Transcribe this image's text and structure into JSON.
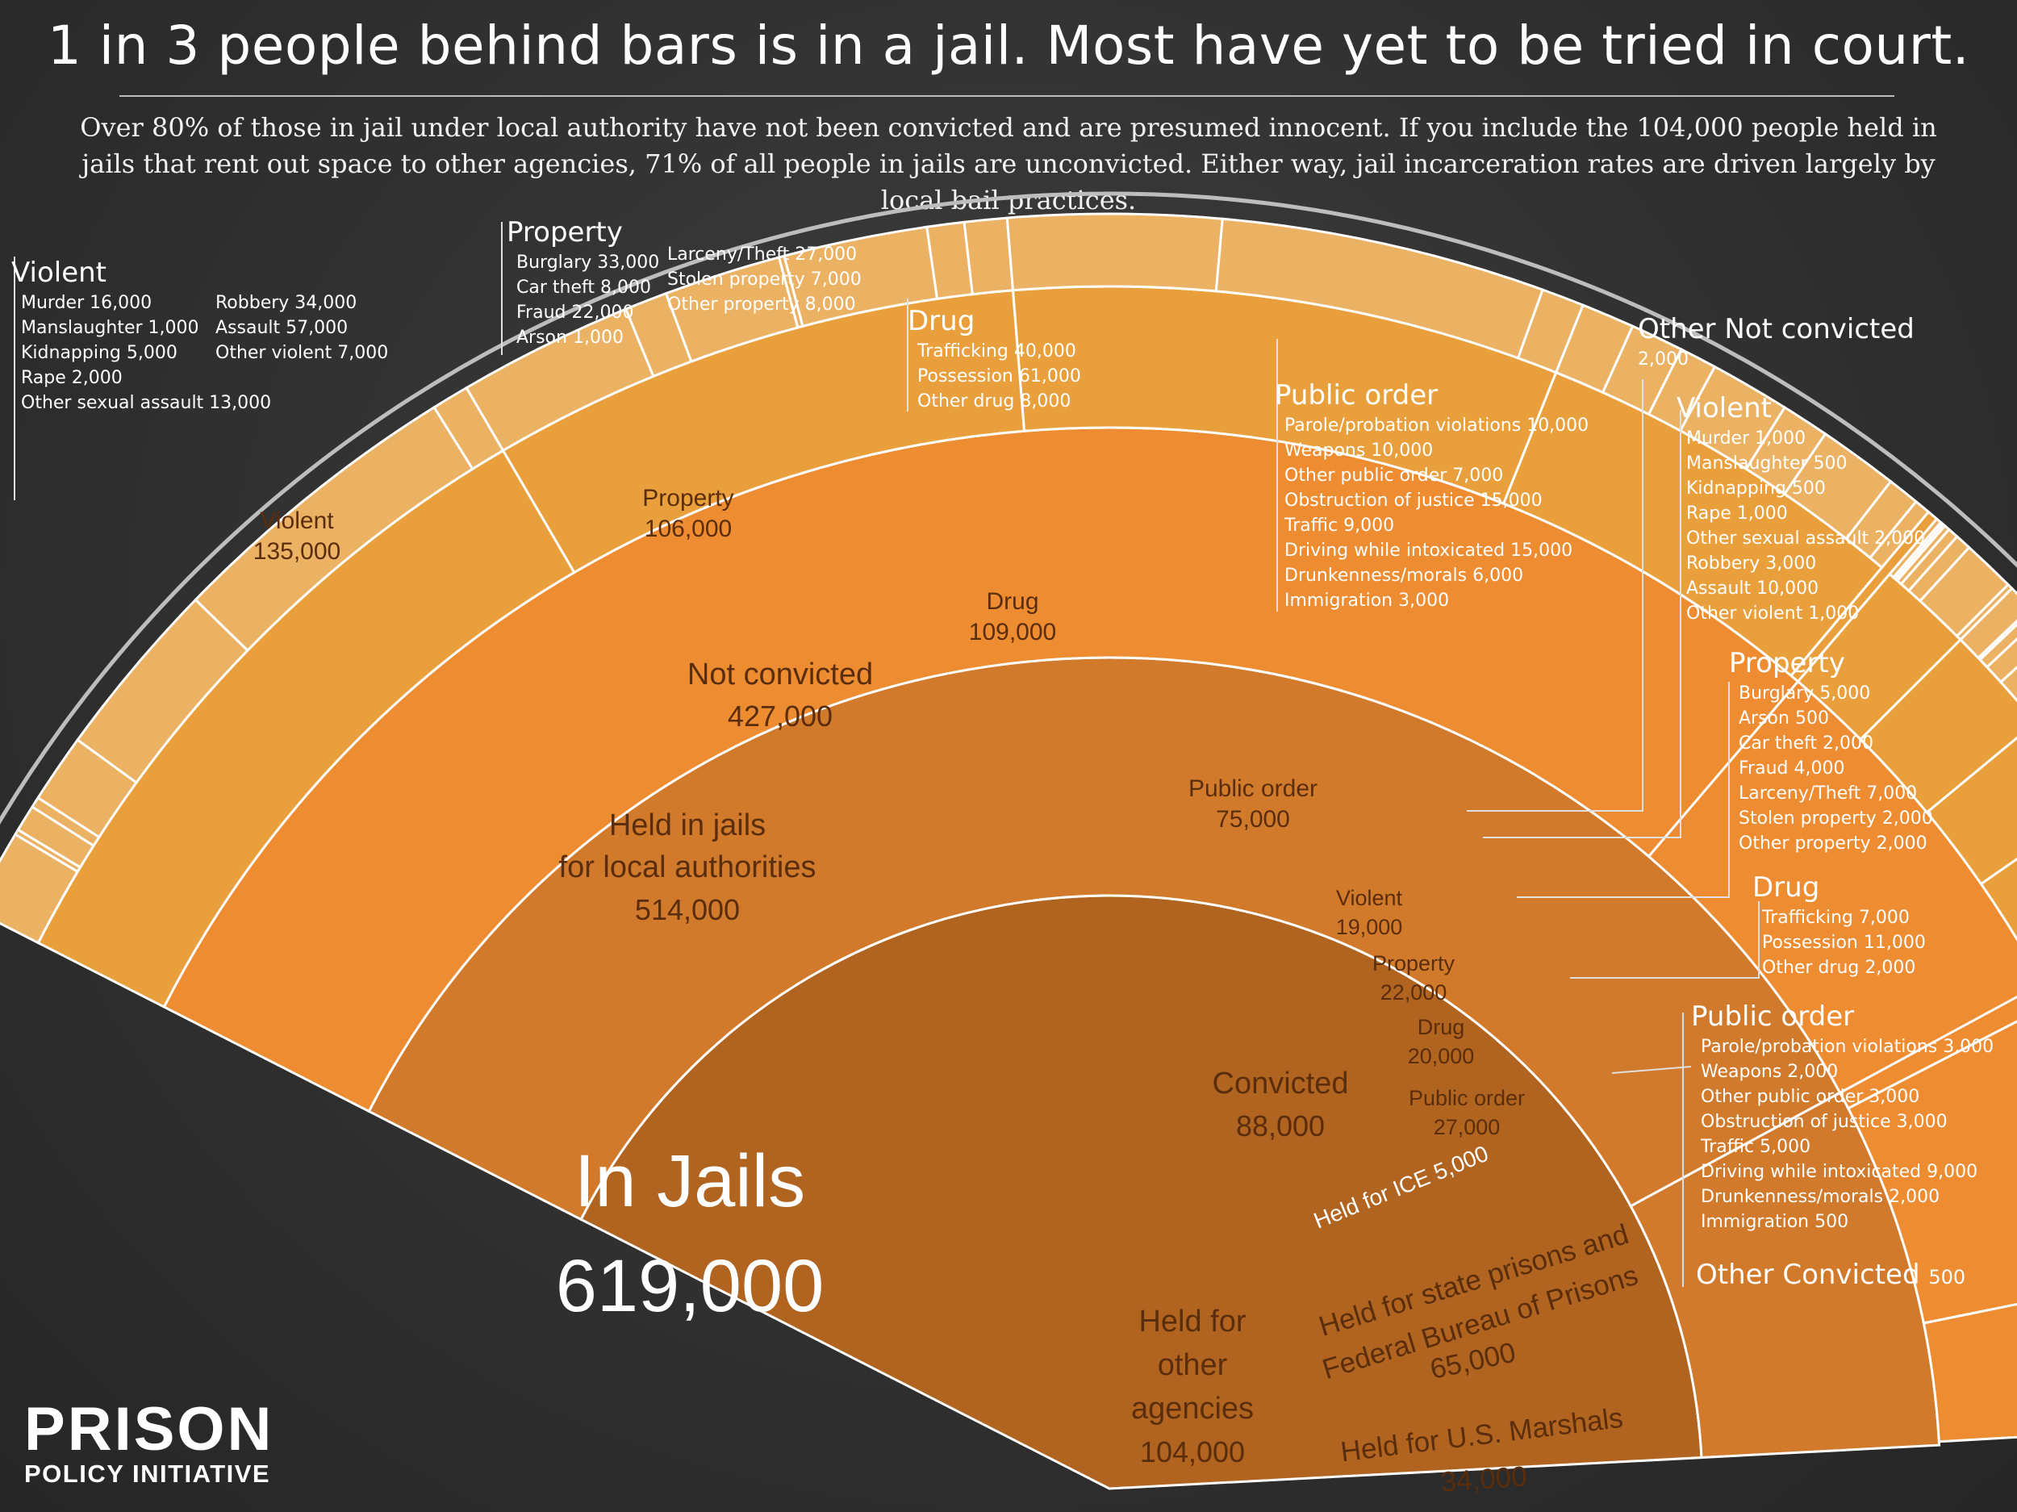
{
  "title": "1 in 3 people behind bars is in a jail. Most have yet to be tried in court.",
  "subtitle": "Over 80% of those in jail under local authority have not been convicted and are presumed innocent. If you include the 104,000 people held in jails that rent out space to other agencies, 71% of all people in jails are unconvicted. Either way, jail incarceration rates are driven largely by local bail practices.",
  "logo": {
    "line1": "PRISON",
    "line2": "POLICY INITIATIVE"
  },
  "chart_data": {
    "type": "sunburst",
    "root": {
      "label": "In Jails",
      "value": "619,000"
    },
    "rings": [
      {
        "key": "local",
        "label": "Held in jails for local authorities",
        "value": 514000,
        "value_label": "514,000"
      },
      {
        "key": "other",
        "label": "Held for other agencies",
        "value": 104000,
        "value_label": "104,000"
      },
      {
        "key": "nc",
        "label": "Not convicted",
        "value": 427000,
        "value_label": "427,000"
      },
      {
        "key": "conv",
        "label": "Convicted",
        "value": 88000,
        "value_label": "88,000"
      },
      {
        "key": "ice",
        "label": "Held for ICE",
        "value": 5000,
        "value_label": "5,000"
      },
      {
        "key": "state",
        "label": "Held for state prisons and Federal Bureau of Prisons",
        "value": 65000,
        "value_label": "65,000"
      },
      {
        "key": "marshals",
        "label": "Held for U.S. Marshals",
        "value": 34000,
        "value_label": "34,000"
      }
    ],
    "not_convicted": [
      {
        "label": "Violent",
        "value": 135000,
        "value_label": "135,000",
        "items": [
          {
            "label": "Murder",
            "value": 16000
          },
          {
            "label": "Manslaughter",
            "value": 1000
          },
          {
            "label": "Kidnapping",
            "value": 5000
          },
          {
            "label": "Rape",
            "value": 2000
          },
          {
            "label": "Other sexual assault",
            "value": 13000
          },
          {
            "label": "Robbery",
            "value": 34000
          },
          {
            "label": "Assault",
            "value": 57000
          },
          {
            "label": "Other violent",
            "value": 7000
          }
        ]
      },
      {
        "label": "Property",
        "value": 106000,
        "value_label": "106,000",
        "items": [
          {
            "label": "Burglary",
            "value": 33000
          },
          {
            "label": "Car theft",
            "value": 8000
          },
          {
            "label": "Fraud",
            "value": 22000
          },
          {
            "label": "Arson",
            "value": 1000
          },
          {
            "label": "Larceny/Theft",
            "value": 27000
          },
          {
            "label": "Stolen property",
            "value": 7000
          },
          {
            "label": "Other property",
            "value": 8000
          }
        ]
      },
      {
        "label": "Drug",
        "value": 109000,
        "value_label": "109,000",
        "items": [
          {
            "label": "Trafficking",
            "value": 40000
          },
          {
            "label": "Possession",
            "value": 61000
          },
          {
            "label": "Other drug",
            "value": 8000
          }
        ]
      },
      {
        "label": "Public order",
        "value": 75000,
        "value_label": "75,000",
        "items": [
          {
            "label": "Parole/probation violations",
            "value": 10000
          },
          {
            "label": "Weapons",
            "value": 10000
          },
          {
            "label": "Other public order",
            "value": 7000
          },
          {
            "label": "Obstruction of justice",
            "value": 15000
          },
          {
            "label": "Traffic",
            "value": 9000
          },
          {
            "label": "Driving while intoxicated",
            "value": 15000
          },
          {
            "label": "Drunkenness/morals",
            "value": 6000
          },
          {
            "label": "Immigration",
            "value": 3000
          }
        ]
      },
      {
        "label": "Other Not convicted",
        "value": 2000,
        "value_label": "2,000",
        "items": []
      }
    ],
    "convicted": [
      {
        "label": "Violent",
        "value": 19000,
        "value_label": "19,000",
        "items": [
          {
            "label": "Murder",
            "value": 1000
          },
          {
            "label": "Manslaughter",
            "value": 500
          },
          {
            "label": "Kidnapping",
            "value": 500
          },
          {
            "label": "Rape",
            "value": 1000
          },
          {
            "label": "Other sexual assault",
            "value": 2000
          },
          {
            "label": "Robbery",
            "value": 3000
          },
          {
            "label": "Assault",
            "value": 10000
          },
          {
            "label": "Other violent",
            "value": 1000
          }
        ]
      },
      {
        "label": "Property",
        "value": 22000,
        "value_label": "22,000",
        "items": [
          {
            "label": "Burglary",
            "value": 5000
          },
          {
            "label": "Arson",
            "value": 500
          },
          {
            "label": "Car theft",
            "value": 2000
          },
          {
            "label": "Fraud",
            "value": 4000
          },
          {
            "label": "Larceny/Theft",
            "value": 7000
          },
          {
            "label": "Stolen property",
            "value": 2000
          },
          {
            "label": "Other property",
            "value": 2000
          }
        ]
      },
      {
        "label": "Drug",
        "value": 20000,
        "value_label": "20,000",
        "items": [
          {
            "label": "Trafficking",
            "value": 7000
          },
          {
            "label": "Possession",
            "value": 11000
          },
          {
            "label": "Other drug",
            "value": 2000
          }
        ]
      },
      {
        "label": "Public order",
        "value": 27000,
        "value_label": "27,000",
        "items": [
          {
            "label": "Parole/probation violations",
            "value": 3000
          },
          {
            "label": "Weapons",
            "value": 2000
          },
          {
            "label": "Other public order",
            "value": 3000
          },
          {
            "label": "Obstruction of justice",
            "value": 3000
          },
          {
            "label": "Traffic",
            "value": 5000
          },
          {
            "label": "Driving while intoxicated",
            "value": 9000
          },
          {
            "label": "Drunkenness/morals",
            "value": 2000
          },
          {
            "label": "Immigration",
            "value": 500
          }
        ]
      },
      {
        "label": "Other Convicted",
        "value": 500,
        "value_label": "500",
        "items": []
      }
    ],
    "colors": {
      "root": "#b0641f",
      "ring1": "#d27a2c",
      "ring2": "#ee8c32",
      "ring3": "#e9a03c",
      "ring4": "#ecb264",
      "sep": "#ffffff"
    }
  }
}
